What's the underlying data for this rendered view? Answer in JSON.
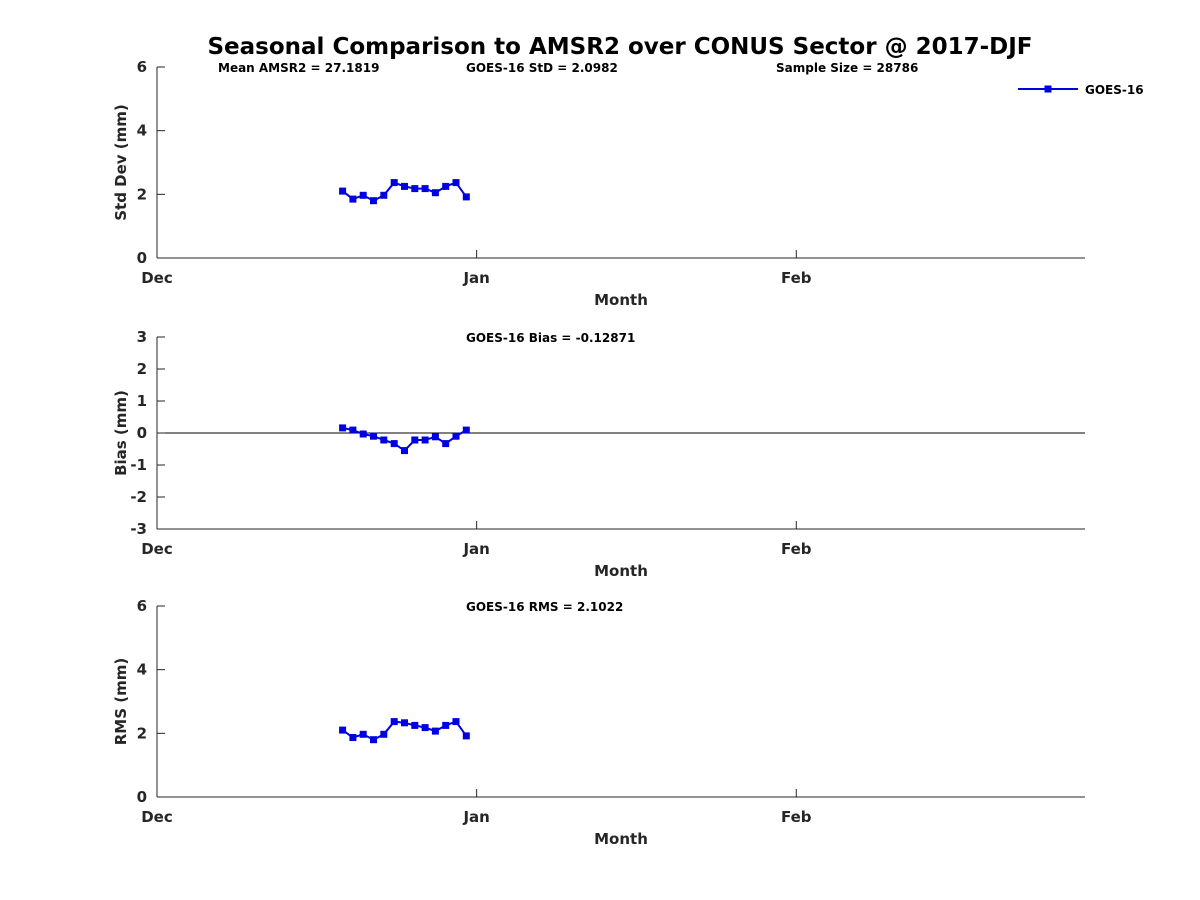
{
  "figure": {
    "title": "Seasonal Comparison to AMSR2 over CONUS Sector @ 2017-DJF"
  },
  "legend": {
    "entries": [
      "GOES-16"
    ],
    "placement": "top-right",
    "color": "#0000e0"
  },
  "chart_data": [
    {
      "id": "std",
      "type": "line",
      "ylabel": "Std Dev (mm)",
      "xlabel": "Month",
      "ylim": [
        0,
        6
      ],
      "yticks": [
        "0",
        "2",
        "4",
        "6"
      ],
      "xticks": [
        "Dec",
        "Jan",
        "Feb"
      ],
      "xlim_days": [
        0,
        90
      ],
      "annotations": [
        "Mean AMSR2 = 27.1819",
        "GOES-16 StD = 2.0982",
        "Sample Size = 28786"
      ],
      "series": [
        {
          "name": "GOES-16",
          "x_day": [
            18,
            19,
            20,
            21,
            22,
            23,
            24,
            25,
            26,
            27,
            28,
            29,
            30
          ],
          "values": [
            2.1,
            1.85,
            1.97,
            1.8,
            1.97,
            2.37,
            2.25,
            2.18,
            2.18,
            2.05,
            2.25,
            2.37,
            1.92
          ]
        }
      ]
    },
    {
      "id": "bias",
      "type": "line",
      "ylabel": "Bias (mm)",
      "xlabel": "Month",
      "ylim": [
        -3,
        3
      ],
      "yticks": [
        "-3",
        "-2",
        "-1",
        "0",
        "1",
        "2",
        "3"
      ],
      "xticks": [
        "Dec",
        "Jan",
        "Feb"
      ],
      "xlim_days": [
        0,
        90
      ],
      "annotations": [
        "GOES-16 Bias = -0.12871"
      ],
      "zero_line": true,
      "series": [
        {
          "name": "GOES-16",
          "x_day": [
            18,
            19,
            20,
            21,
            22,
            23,
            24,
            25,
            26,
            27,
            28,
            29,
            30
          ],
          "values": [
            0.16,
            0.09,
            -0.03,
            -0.1,
            -0.22,
            -0.33,
            -0.55,
            -0.22,
            -0.22,
            -0.12,
            -0.33,
            -0.1,
            0.09
          ]
        }
      ]
    },
    {
      "id": "rms",
      "type": "line",
      "ylabel": "RMS (mm)",
      "xlabel": "Month",
      "ylim": [
        0,
        6
      ],
      "yticks": [
        "0",
        "2",
        "4",
        "6"
      ],
      "xticks": [
        "Dec",
        "Jan",
        "Feb"
      ],
      "xlim_days": [
        0,
        90
      ],
      "annotations": [
        "GOES-16 RMS = 2.1022"
      ],
      "series": [
        {
          "name": "GOES-16",
          "x_day": [
            18,
            19,
            20,
            21,
            22,
            23,
            24,
            25,
            26,
            27,
            28,
            29,
            30
          ],
          "values": [
            2.1,
            1.87,
            1.97,
            1.8,
            1.97,
            2.37,
            2.33,
            2.25,
            2.18,
            2.07,
            2.25,
            2.37,
            1.92
          ]
        }
      ]
    }
  ]
}
